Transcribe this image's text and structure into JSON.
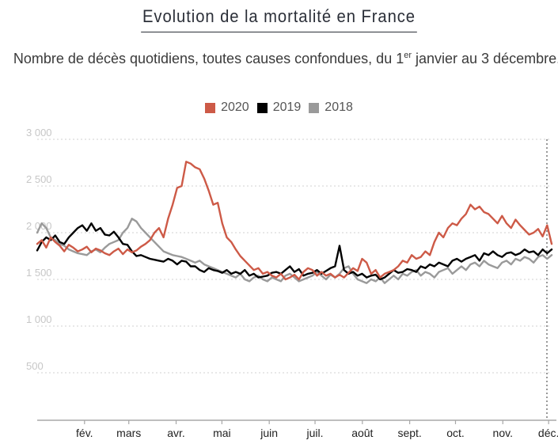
{
  "chart_data": {
    "type": "line",
    "title": "Evolution de la mortalité en France",
    "subtitle_main": "Nombre de décès quotidiens, toutes causes confondues, du 1",
    "subtitle_sup": "er",
    "subtitle_rest": " janvier au 3 décembre.",
    "xlabel": "",
    "ylabel": "",
    "x_domain": [
      "01-01",
      "12-03"
    ],
    "x_days_total": 337,
    "sample_step_days": 3.5,
    "ylim": [
      0,
      3000
    ],
    "yticks": [
      500,
      1000,
      1500,
      2000,
      2500,
      3000
    ],
    "ytick_labels": [
      "500",
      "1 000",
      "1 500",
      "2 000",
      "2 500",
      "3 000"
    ],
    "grid": true,
    "grid_style": "dotted",
    "legend_position": "top-center",
    "months": [
      {
        "label": "fév.",
        "day": 31
      },
      {
        "label": "mars",
        "day": 60
      },
      {
        "label": "avr.",
        "day": 91
      },
      {
        "label": "mai",
        "day": 121
      },
      {
        "label": "juin",
        "day": 152
      },
      {
        "label": "juil.",
        "day": 182
      },
      {
        "label": "août",
        "day": 213
      },
      {
        "label": "sept.",
        "day": 244
      },
      {
        "label": "oct.",
        "day": 274
      },
      {
        "label": "nov.",
        "day": 305
      },
      {
        "label": "déc.",
        "day": 335
      }
    ],
    "marker_line": {
      "day": 337,
      "style": "dotted"
    },
    "series": [
      {
        "name": "2020",
        "color": "#cd5a47",
        "values": [
          1880,
          1920,
          1840,
          1950,
          1900,
          1860,
          1800,
          1870,
          1840,
          1800,
          1820,
          1850,
          1790,
          1830,
          1810,
          1780,
          1760,
          1800,
          1830,
          1770,
          1820,
          1790,
          1810,
          1850,
          1880,
          1920,
          2000,
          2050,
          1950,
          2150,
          2300,
          2480,
          2500,
          2760,
          2740,
          2700,
          2680,
          2580,
          2450,
          2300,
          2320,
          2100,
          1950,
          1900,
          1820,
          1750,
          1700,
          1650,
          1600,
          1620,
          1560,
          1580,
          1540,
          1520,
          1560,
          1500,
          1520,
          1550,
          1500,
          1580,
          1620,
          1600,
          1540,
          1580,
          1540,
          1560,
          1520,
          1550,
          1520,
          1570,
          1620,
          1590,
          1720,
          1680,
          1560,
          1600,
          1520,
          1560,
          1580,
          1600,
          1640,
          1700,
          1680,
          1760,
          1720,
          1740,
          1800,
          1760,
          1900,
          2000,
          1950,
          2050,
          2100,
          2080,
          2150,
          2200,
          2300,
          2250,
          2280,
          2220,
          2200,
          2150,
          2100,
          2180,
          2100,
          2050,
          2140,
          2080,
          2030,
          1980,
          2000,
          2040,
          1960,
          2080,
          1880
        ]
      },
      {
        "name": "2019",
        "color": "#000000",
        "values": [
          1810,
          1900,
          1950,
          1920,
          1970,
          1900,
          1880,
          1950,
          2000,
          2050,
          2080,
          2020,
          2100,
          2020,
          2050,
          1980,
          1970,
          2010,
          1950,
          1880,
          1870,
          1800,
          1750,
          1760,
          1740,
          1720,
          1710,
          1700,
          1690,
          1720,
          1700,
          1660,
          1700,
          1690,
          1640,
          1640,
          1600,
          1580,
          1620,
          1600,
          1590,
          1570,
          1600,
          1560,
          1580,
          1560,
          1600,
          1540,
          1560,
          1520,
          1530,
          1540,
          1570,
          1580,
          1560,
          1600,
          1640,
          1580,
          1610,
          1540,
          1560,
          1570,
          1600,
          1560,
          1590,
          1620,
          1640,
          1860,
          1600,
          1560,
          1580,
          1540,
          1560,
          1520,
          1540,
          1550,
          1500,
          1520,
          1560,
          1600,
          1570,
          1580,
          1610,
          1600,
          1580,
          1640,
          1620,
          1660,
          1640,
          1680,
          1660,
          1640,
          1700,
          1720,
          1690,
          1720,
          1740,
          1760,
          1700,
          1780,
          1760,
          1800,
          1760,
          1740,
          1780,
          1790,
          1760,
          1780,
          1820,
          1790,
          1800,
          1760,
          1820,
          1780,
          1820
        ]
      },
      {
        "name": "2018",
        "color": "#9a9a9a",
        "values": [
          2000,
          2100,
          2050,
          1950,
          1920,
          1880,
          1860,
          1820,
          1800,
          1780,
          1770,
          1760,
          1800,
          1820,
          1790,
          1840,
          1880,
          1900,
          1920,
          2000,
          2050,
          2150,
          2120,
          2050,
          2000,
          1950,
          1900,
          1850,
          1800,
          1780,
          1760,
          1750,
          1740,
          1720,
          1700,
          1680,
          1700,
          1660,
          1640,
          1620,
          1600,
          1580,
          1560,
          1540,
          1520,
          1560,
          1500,
          1480,
          1520,
          1540,
          1500,
          1480,
          1520,
          1500,
          1480,
          1540,
          1560,
          1520,
          1480,
          1500,
          1520,
          1540,
          1580,
          1540,
          1500,
          1550,
          1520,
          1560,
          1620,
          1640,
          1560,
          1500,
          1480,
          1460,
          1500,
          1480,
          1520,
          1460,
          1500,
          1540,
          1500,
          1560,
          1540,
          1580,
          1600,
          1540,
          1580,
          1560,
          1520,
          1580,
          1600,
          1620,
          1560,
          1600,
          1640,
          1600,
          1660,
          1680,
          1640,
          1700,
          1660,
          1640,
          1620,
          1680,
          1700,
          1660,
          1720,
          1700,
          1740,
          1720,
          1680,
          1740,
          1760,
          1720,
          1760
        ]
      }
    ]
  },
  "legend": {
    "items": [
      {
        "label": "2020",
        "color": "#cd5a47"
      },
      {
        "label": "2019",
        "color": "#000000"
      },
      {
        "label": "2018",
        "color": "#9a9a9a"
      }
    ]
  }
}
